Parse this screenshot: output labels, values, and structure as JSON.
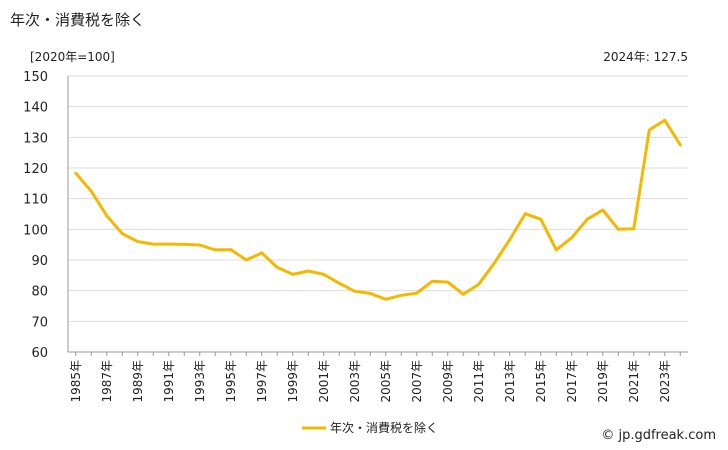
{
  "header": {
    "title": "年次・消費税を除く",
    "unit": "[2020年=100]",
    "latest": "2024年: 127.5"
  },
  "footer": {
    "credit": "© jp.gdfreak.com"
  },
  "colors": {
    "series": "#f5b800",
    "grid": "#dddddd",
    "axis": "#999999"
  },
  "chart_data": {
    "type": "line",
    "title": "年次・消費税を除く",
    "ylabel": "[2020年=100]",
    "ylim": [
      60,
      150
    ],
    "yticks": [
      60,
      70,
      80,
      90,
      100,
      110,
      120,
      130,
      140,
      150
    ],
    "grid": true,
    "legend_position": "bottom",
    "x_tick_labels": [
      "1985年",
      "1987年",
      "1989年",
      "1991年",
      "1993年",
      "1995年",
      "1997年",
      "1999年",
      "2001年",
      "2003年",
      "2005年",
      "2007年",
      "2009年",
      "2011年",
      "2013年",
      "2015年",
      "2017年",
      "2019年",
      "2021年",
      "2023年"
    ],
    "x": [
      1985,
      1986,
      1987,
      1988,
      1989,
      1990,
      1991,
      1992,
      1993,
      1994,
      1995,
      1996,
      1997,
      1998,
      1999,
      2000,
      2001,
      2002,
      2003,
      2004,
      2005,
      2006,
      2007,
      2008,
      2009,
      2010,
      2011,
      2012,
      2013,
      2014,
      2015,
      2016,
      2017,
      2018,
      2019,
      2020,
      2021,
      2022,
      2023,
      2024
    ],
    "series": [
      {
        "name": "年次・消費税を除く",
        "values": [
          118.3,
          112.4,
          104.4,
          98.6,
          96.0,
          95.2,
          95.2,
          95.1,
          94.9,
          93.3,
          93.4,
          90.0,
          92.3,
          87.6,
          85.3,
          86.4,
          85.3,
          82.4,
          79.8,
          79.1,
          77.2,
          78.5,
          79.2,
          83.1,
          82.8,
          78.8,
          82.1,
          89.0,
          96.7,
          105.1,
          103.3,
          93.3,
          97.3,
          103.3,
          106.3,
          100.0,
          100.2,
          132.4,
          135.6,
          127.5
        ]
      }
    ]
  }
}
